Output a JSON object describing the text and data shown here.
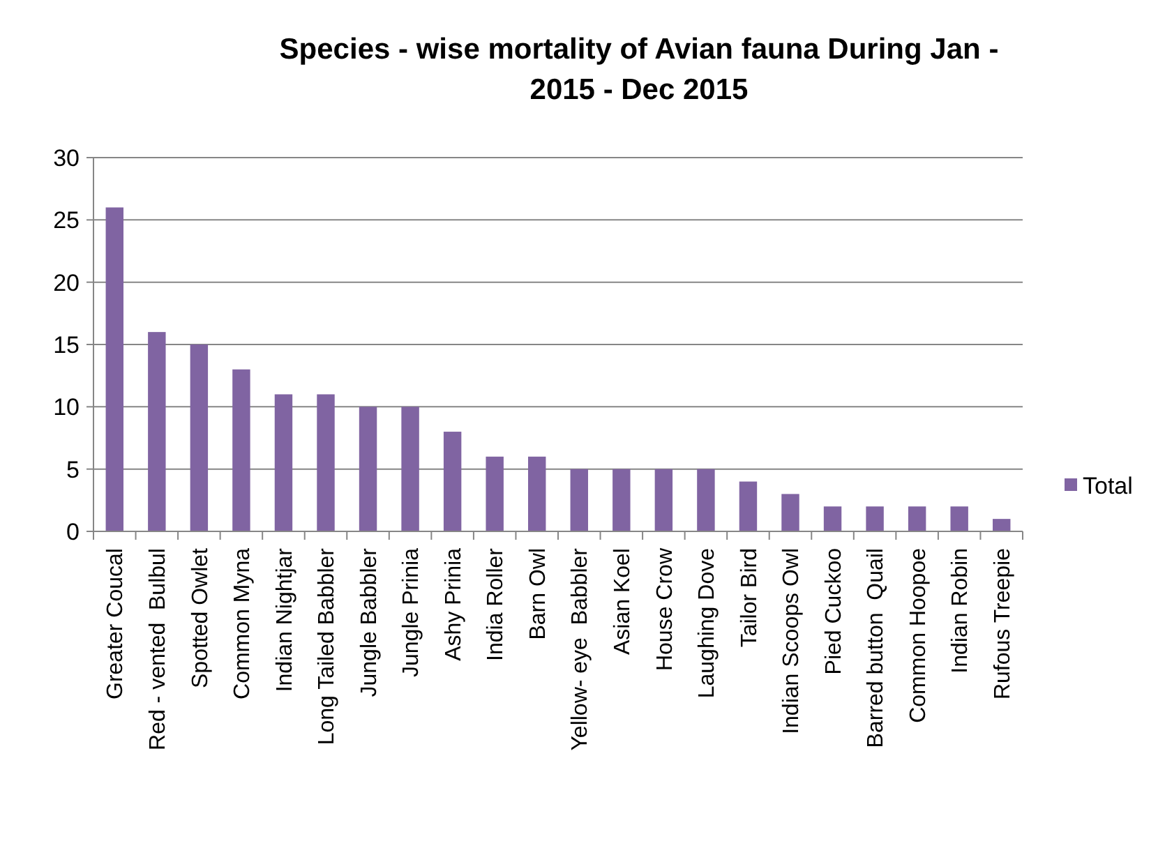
{
  "chart_data": {
    "type": "bar",
    "title": "Species - wise mortality of Avian fauna During Jan - 2015 - Dec 2015",
    "categories": [
      "Greater Coucal",
      "Red - vented  Bulbul",
      "Spotted Owlet",
      "Common Myna",
      "Indian Nightjar",
      "Long Tailed Babbler",
      "Jungle Babbler",
      "Jungle Prinia",
      "Ashy Prinia",
      "India Roller",
      "Barn Owl",
      "Yellow- eye  Babbler",
      "Asian Koel",
      "House Crow",
      "Laughing Dove",
      "Tailor Bird",
      "Indian Scoops Owl",
      "Pied Cuckoo",
      "Barred button  Quail",
      "Common Hoopoe",
      "Indian Robin",
      "Rufous Treepie"
    ],
    "series": [
      {
        "name": "Total",
        "color": "#8064a2",
        "values": [
          26,
          16,
          15,
          13,
          11,
          11,
          10,
          10,
          8,
          6,
          6,
          5,
          5,
          5,
          5,
          4,
          3,
          2,
          2,
          2,
          2,
          1
        ]
      }
    ],
    "ylim": [
      0,
      30
    ],
    "yticks": [
      0,
      5,
      10,
      15,
      20,
      25,
      30
    ],
    "grid": "y",
    "legend": "right"
  }
}
